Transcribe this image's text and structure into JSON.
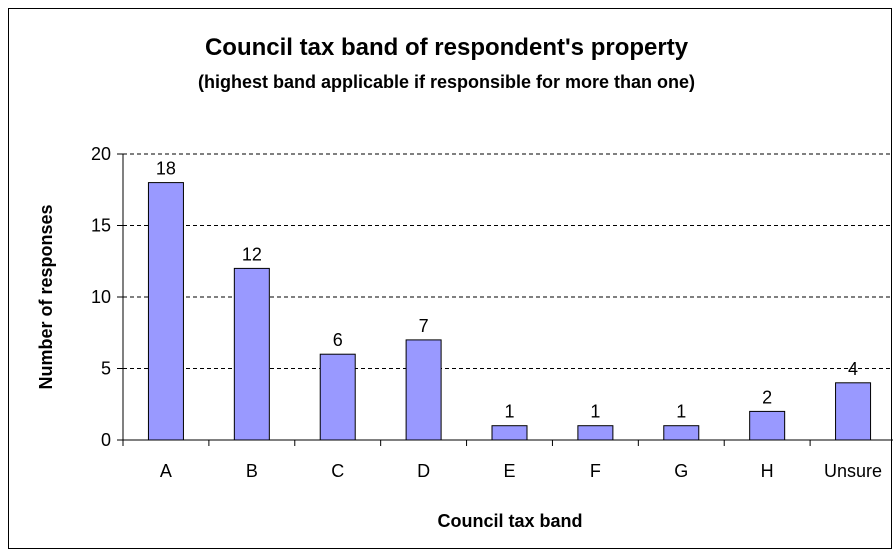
{
  "chart_data": {
    "type": "bar",
    "title": "Council tax band of respondent's property",
    "subtitle": "(highest band applicable if responsible for more than one)",
    "xlabel": "Council tax band",
    "ylabel": "Number of responses",
    "categories": [
      "A",
      "B",
      "C",
      "D",
      "E",
      "F",
      "G",
      "H",
      "Unsure"
    ],
    "values": [
      18,
      12,
      6,
      7,
      1,
      1,
      1,
      2,
      4
    ],
    "ylim": [
      0,
      20
    ],
    "yticks": [
      0,
      5,
      10,
      15,
      20
    ],
    "grid": "horizontal dashed",
    "legend": "none",
    "bar_color": "#9999ff",
    "data_labels": true
  }
}
